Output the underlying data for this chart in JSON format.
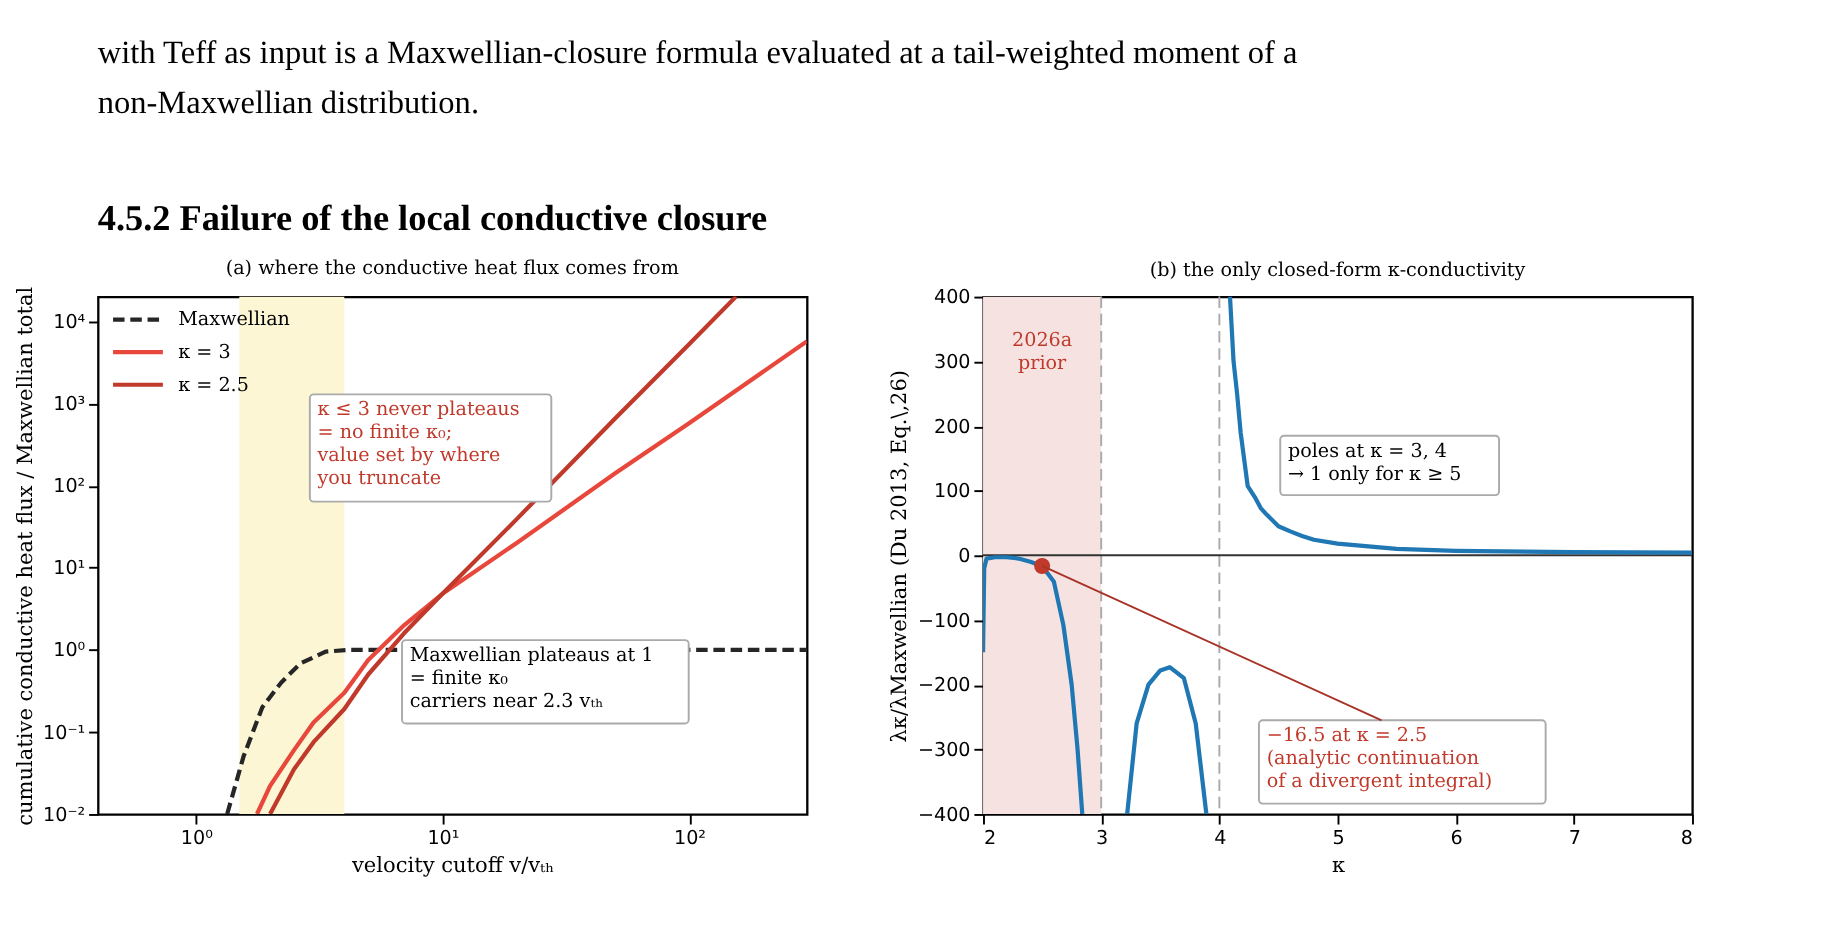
{
  "chart_data": [
    {
      "type": "other",
      "title": "4.5.2    Failure of the local conductive closure",
      "annotations": [
        "with Teff as input is a Maxwellian-closure formula evaluated at a tail-weighted moment of a",
        "non-Maxwellian distribution."
      ]
    },
    {
      "type": "line",
      "title": "(a) where the conductive heat flux comes from",
      "xlabel": "velocity cutoff  v/vₜₕ",
      "ylabel": "cumulative conductive heat flux / Maxwellian total",
      "log": "xy",
      "xlim": [
        0.4,
        300
      ],
      "ylim": [
        0.01,
        20000
      ],
      "xticks": [
        {
          "value": 1,
          "label": "10⁰"
        },
        {
          "value": 10,
          "label": "10¹"
        },
        {
          "value": 100,
          "label": "10²"
        }
      ],
      "yticks": [
        {
          "value": 0.01,
          "label": "10⁻²"
        },
        {
          "value": 0.1,
          "label": "10⁻¹"
        },
        {
          "value": 1,
          "label": "10⁰"
        },
        {
          "value": 10,
          "label": "10¹"
        },
        {
          "value": 100,
          "label": "10²"
        },
        {
          "value": 1000,
          "label": "10³"
        },
        {
          "value": 10000,
          "label": "10⁴"
        }
      ],
      "grid": false,
      "legend": "top left",
      "bands": [
        {
          "axis": "x",
          "from": 1.5,
          "to": 4,
          "color": "#fdf6d5"
        }
      ],
      "series": [
        {
          "name": "Maxwellian",
          "color": "#262626",
          "line_style": "dashed",
          "x": [
            1.34,
            1.56,
            1.86,
            2.22,
            2.65,
            3.36,
            4.25,
            100,
            300
          ],
          "values": [
            0.01,
            0.05,
            0.2,
            0.4,
            0.68,
            0.95,
            1,
            1,
            1
          ]
        },
        {
          "name": "κ = 3",
          "color": "#e8473b",
          "line_style": "solid",
          "x": [
            1.77,
            2,
            2.5,
            3,
            4,
            5,
            7,
            10,
            20,
            50,
            100,
            300
          ],
          "values": [
            0.01,
            0.022,
            0.06,
            0.13,
            0.3,
            0.75,
            2,
            4.8,
            20,
            140,
            575,
            5700
          ]
        },
        {
          "name": "κ = 2.5",
          "color": "#c0392b",
          "line_style": "solid",
          "x": [
            2,
            2.5,
            3,
            4,
            5,
            7,
            10,
            20,
            50,
            100,
            155
          ],
          "values": [
            0.01,
            0.035,
            0.075,
            0.19,
            0.5,
            1.6,
            4.8,
            39,
            650,
            5250,
            20000
          ]
        }
      ],
      "annotations": [
        "κ ≤ 3 never plateaus\n = no finite κ₀;\nvalue set by where\nyou truncate",
        "Maxwellian plateaus at 1\n = finite κ₀\ncarriers near 2.3 vₜₕ"
      ]
    },
    {
      "type": "line",
      "title": "(b) the only closed-form κ-conductivity",
      "xlabel": "κ",
      "ylabel": "λκ/λMaxwellian  (Du 2013, Eq.\\,26)",
      "xlim": [
        2,
        8
      ],
      "ylim": [
        -400,
        400
      ],
      "xticks": [
        2,
        3,
        4,
        5,
        6,
        7,
        8
      ],
      "yticks": [
        {
          "value": -400,
          "label": "−400"
        },
        {
          "value": -300,
          "label": "−300"
        },
        {
          "value": -200,
          "label": "−200"
        },
        {
          "value": -100,
          "label": "−100"
        },
        0,
        100,
        200,
        300,
        400
      ],
      "grid": false,
      "legend": false,
      "bands": [
        {
          "axis": "x",
          "from": 2,
          "to": 3,
          "label": "2026a\nprior",
          "color": "#f6e3e1"
        }
      ],
      "ref_lines": [
        {
          "axis": "x",
          "value": 3,
          "color": "#aaaaaa",
          "line_style": "dashed"
        },
        {
          "axis": "x",
          "value": 4,
          "color": "#aaaaaa",
          "line_style": "dashed"
        },
        {
          "axis": "y",
          "value": 0,
          "color": "#333333",
          "line_style": "solid"
        }
      ],
      "series": [
        {
          "color": "#1f77b4",
          "line_style": "solid",
          "x": [
            2.0,
            2.01,
            2.03,
            2.1,
            2.2,
            2.3,
            2.4,
            2.5,
            2.6,
            2.68,
            2.75,
            2.8,
            2.84,
            3.0,
            3.22,
            3.3,
            3.4,
            3.5,
            3.58,
            3.7,
            3.8,
            3.89,
            4.0,
            4.09,
            4.12,
            4.15,
            4.18,
            4.24,
            4.3,
            4.35,
            4.4,
            4.5,
            4.6,
            4.7,
            4.8,
            5,
            5.5,
            6,
            7,
            8
          ],
          "values": [
            -150,
            -20,
            -5,
            -3,
            -3,
            -5,
            -10,
            -16.5,
            -41,
            -108,
            -200,
            -300,
            -400,
            null,
            -400,
            -260,
            -200,
            -178,
            -173,
            -190,
            -260,
            -400,
            null,
            400,
            300,
            250,
            190,
            107,
            90,
            73,
            63,
            45,
            37,
            30,
            24,
            18,
            10,
            7,
            5,
            4
          ]
        },
        {
          "type": "scatter",
          "color": "#c0392b",
          "marker": "circle",
          "x": [
            2.5
          ],
          "values": [
            -16.5
          ]
        }
      ],
      "annotations": [
        {
          "text": "−16.5 at κ = 2.5\n(analytic continuation\nof a divergent integral)",
          "x": 2.5,
          "y": -16.5
        },
        "poles at κ = 3, 4\n→ 1 only for κ ≥ 5"
      ]
    }
  ]
}
